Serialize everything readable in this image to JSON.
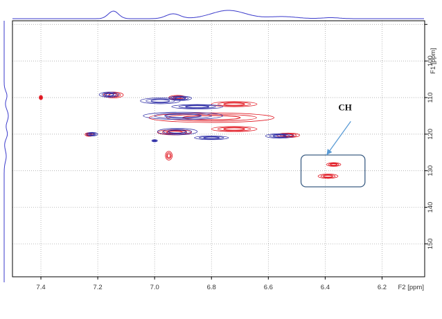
{
  "chart_data": {
    "type": "contour",
    "x_axis": {
      "label": "F2 [ppm]",
      "reversed": true,
      "range": [
        7.5,
        6.05
      ],
      "ticks": [
        7.4,
        7.2,
        7.0,
        6.8,
        6.6,
        6.4,
        6.2
      ]
    },
    "y_axis": {
      "label": "F1 [ppm]",
      "reversed": true,
      "range": [
        89,
        159
      ],
      "ticks": [
        90,
        100,
        110,
        120,
        130,
        140,
        150
      ],
      "tick_labels": [
        "",
        "100",
        "110",
        "120",
        "130",
        "140",
        "150"
      ]
    },
    "grid": true,
    "colors": {
      "series_a": "#e0141e",
      "series_b": "#3232a8",
      "frame": "#000000",
      "grid": "#9a9a9a",
      "projection": "#3a3acb",
      "annotation": "#5a9bd5",
      "box": "#3d5f85"
    },
    "series": [
      {
        "color_key": "series_a",
        "peaks": [
          {
            "x": 7.4,
            "y": 110.0,
            "rx": 0.004,
            "ry": 0.6
          },
          {
            "x": 7.145,
            "y": 109.3,
            "rx": 0.035,
            "ry": 0.8
          },
          {
            "x": 6.92,
            "y": 110.0,
            "rx": 0.03,
            "ry": 0.6
          },
          {
            "x": 6.72,
            "y": 111.8,
            "rx": 0.08,
            "ry": 0.7
          },
          {
            "x": 6.8,
            "y": 115.5,
            "rx": 0.22,
            "ry": 1.3
          },
          {
            "x": 6.72,
            "y": 118.6,
            "rx": 0.08,
            "ry": 0.7
          },
          {
            "x": 6.93,
            "y": 119.5,
            "rx": 0.06,
            "ry": 0.7
          },
          {
            "x": 7.23,
            "y": 120.1,
            "rx": 0.015,
            "ry": 0.5
          },
          {
            "x": 6.53,
            "y": 120.3,
            "rx": 0.04,
            "ry": 0.6
          },
          {
            "x": 6.95,
            "y": 125.9,
            "rx": 0.012,
            "ry": 1.2
          },
          {
            "x": 6.37,
            "y": 128.3,
            "rx": 0.025,
            "ry": 0.5
          },
          {
            "x": 6.39,
            "y": 131.5,
            "rx": 0.035,
            "ry": 0.6
          }
        ]
      },
      {
        "color_key": "series_b",
        "peaks": [
          {
            "x": 7.16,
            "y": 109.2,
            "rx": 0.035,
            "ry": 0.7
          },
          {
            "x": 6.98,
            "y": 110.9,
            "rx": 0.07,
            "ry": 0.8
          },
          {
            "x": 6.91,
            "y": 110.2,
            "rx": 0.04,
            "ry": 0.6
          },
          {
            "x": 6.85,
            "y": 112.5,
            "rx": 0.09,
            "ry": 0.6
          },
          {
            "x": 6.9,
            "y": 115.0,
            "rx": 0.14,
            "ry": 1.0
          },
          {
            "x": 6.92,
            "y": 119.3,
            "rx": 0.07,
            "ry": 0.9
          },
          {
            "x": 6.8,
            "y": 121.0,
            "rx": 0.06,
            "ry": 0.5
          },
          {
            "x": 7.22,
            "y": 120.0,
            "rx": 0.02,
            "ry": 0.5
          },
          {
            "x": 6.56,
            "y": 120.5,
            "rx": 0.05,
            "ry": 0.6
          },
          {
            "x": 7.0,
            "y": 121.8,
            "rx": 0.01,
            "ry": 0.3
          }
        ]
      }
    ],
    "annotations": [
      {
        "text": "CH",
        "text_x": 6.33,
        "text_y": 113.5,
        "arrow_from_x": 6.31,
        "arrow_from_y": 116.5,
        "arrow_to_x": 6.395,
        "arrow_to_y": 125.7,
        "box_x": [
          6.485,
          6.26
        ],
        "box_y": [
          125.7,
          134.4
        ]
      }
    ]
  }
}
